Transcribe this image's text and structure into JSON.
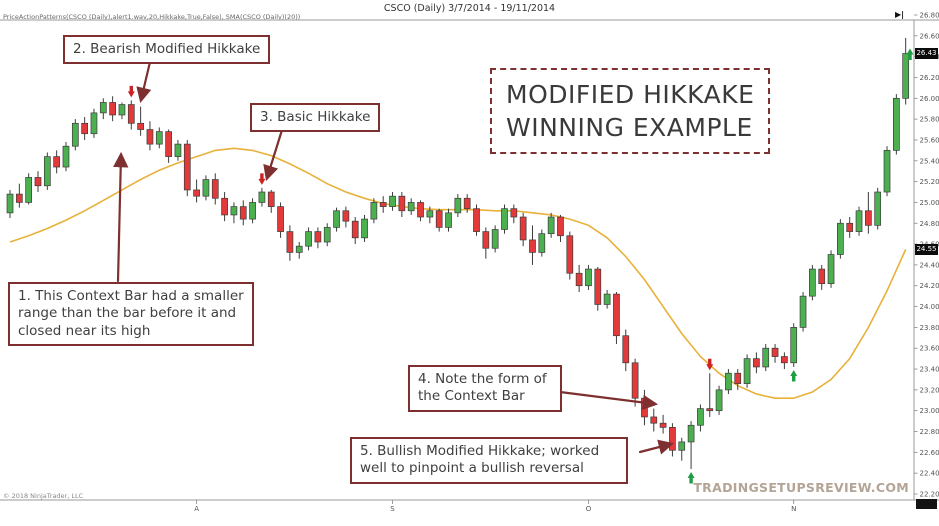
{
  "window": {
    "title": "CSCO (Daily) 3/7/2014 - 19/11/2014",
    "indicator_label": "PriceActionPatterns(CSCO (Daily),alert1.wav,20,Hikkake,True,False), SMA(CSCO (Daily)(20))",
    "copyright": "© 2018 NinjaTrader, LLC",
    "watermark": "TRADINGSETUPSREVIEW.COM"
  },
  "icons": {
    "scroll_to_end": "▶|"
  },
  "annotations": {
    "title_box": "MODIFIED HIKKAKE\nWINNING EXAMPLE",
    "note1": "1. This Context Bar had a smaller range than the bar before it and closed near its high",
    "note2": "2. Bearish Modified Hikkake",
    "note3": "3. Basic Hikkake",
    "note4": "4. Note the form of the Context Bar",
    "note5": "5. Bullish Modified Hikkake; worked well to pinpoint a bullish reversal"
  },
  "axis_markers": {
    "last_price": "26.43",
    "sma_value": "24.55"
  },
  "chart_data": {
    "type": "candlestick",
    "symbol": "CSCO",
    "timeframe": "Daily",
    "date_range": "3/7/2014 - 19/11/2014",
    "overlay_line": "SMA(20)",
    "y_axis": {
      "min": 22.2,
      "max": 26.8,
      "step": 0.2
    },
    "x_axis": {
      "tick_labels": [
        "A",
        "S",
        "O",
        "N"
      ],
      "tick_bar_index": [
        20,
        41,
        62,
        84
      ]
    },
    "candles": [
      [
        24.9,
        25.12,
        24.85,
        25.08
      ],
      [
        25.08,
        25.18,
        24.95,
        25.0
      ],
      [
        25.0,
        25.28,
        24.98,
        25.24
      ],
      [
        25.24,
        25.3,
        25.1,
        25.16
      ],
      [
        25.16,
        25.48,
        25.12,
        25.44
      ],
      [
        25.44,
        25.5,
        25.28,
        25.34
      ],
      [
        25.34,
        25.58,
        25.3,
        25.54
      ],
      [
        25.54,
        25.8,
        25.5,
        25.76
      ],
      [
        25.76,
        25.82,
        25.6,
        25.66
      ],
      [
        25.66,
        25.9,
        25.62,
        25.86
      ],
      [
        25.86,
        26.0,
        25.8,
        25.96
      ],
      [
        25.96,
        26.02,
        25.78,
        25.84
      ],
      [
        25.84,
        25.96,
        25.8,
        25.94
      ],
      [
        25.94,
        25.98,
        25.7,
        25.76
      ],
      [
        25.76,
        25.92,
        25.64,
        25.7
      ],
      [
        25.7,
        25.78,
        25.5,
        25.56
      ],
      [
        25.56,
        25.72,
        25.52,
        25.68
      ],
      [
        25.68,
        25.7,
        25.38,
        25.44
      ],
      [
        25.44,
        25.6,
        25.4,
        25.56
      ],
      [
        25.56,
        25.6,
        25.06,
        25.12
      ],
      [
        25.12,
        25.22,
        25.0,
        25.06
      ],
      [
        25.06,
        25.26,
        25.02,
        25.22
      ],
      [
        25.22,
        25.28,
        24.98,
        25.04
      ],
      [
        25.04,
        25.1,
        24.82,
        24.88
      ],
      [
        24.88,
        25.0,
        24.8,
        24.96
      ],
      [
        24.96,
        25.02,
        24.78,
        24.84
      ],
      [
        24.84,
        25.04,
        24.8,
        25.0
      ],
      [
        25.0,
        25.14,
        24.96,
        25.1
      ],
      [
        25.1,
        25.12,
        24.9,
        24.96
      ],
      [
        24.96,
        25.0,
        24.66,
        24.72
      ],
      [
        24.72,
        24.78,
        24.44,
        24.52
      ],
      [
        24.52,
        24.62,
        24.46,
        24.58
      ],
      [
        24.58,
        24.76,
        24.54,
        24.72
      ],
      [
        24.72,
        24.76,
        24.56,
        24.62
      ],
      [
        24.62,
        24.8,
        24.58,
        24.76
      ],
      [
        24.76,
        24.95,
        24.72,
        24.92
      ],
      [
        24.92,
        24.96,
        24.76,
        24.82
      ],
      [
        24.82,
        24.86,
        24.6,
        24.66
      ],
      [
        24.66,
        24.88,
        24.62,
        24.84
      ],
      [
        24.84,
        25.04,
        24.8,
        25.0
      ],
      [
        25.0,
        25.06,
        24.9,
        24.96
      ],
      [
        24.96,
        25.1,
        24.92,
        25.06
      ],
      [
        25.06,
        25.1,
        24.86,
        24.92
      ],
      [
        24.92,
        25.04,
        24.88,
        25.0
      ],
      [
        25.0,
        25.02,
        24.82,
        24.86
      ],
      [
        24.86,
        24.96,
        24.8,
        24.92
      ],
      [
        24.92,
        24.94,
        24.72,
        24.76
      ],
      [
        24.76,
        24.94,
        24.72,
        24.9
      ],
      [
        24.9,
        25.08,
        24.86,
        25.04
      ],
      [
        25.04,
        25.08,
        24.9,
        24.94
      ],
      [
        24.94,
        24.98,
        24.68,
        24.72
      ],
      [
        24.72,
        24.76,
        24.46,
        24.56
      ],
      [
        24.56,
        24.78,
        24.52,
        24.74
      ],
      [
        24.74,
        24.98,
        24.7,
        24.94
      ],
      [
        24.94,
        24.98,
        24.8,
        24.86
      ],
      [
        24.86,
        24.9,
        24.58,
        24.64
      ],
      [
        24.64,
        24.78,
        24.4,
        24.52
      ],
      [
        24.52,
        24.74,
        24.48,
        24.7
      ],
      [
        24.7,
        24.9,
        24.66,
        24.86
      ],
      [
        24.86,
        24.88,
        24.62,
        24.68
      ],
      [
        24.68,
        24.72,
        24.26,
        24.32
      ],
      [
        24.32,
        24.4,
        24.14,
        24.2
      ],
      [
        24.2,
        24.4,
        24.16,
        24.36
      ],
      [
        24.36,
        24.38,
        23.96,
        24.02
      ],
      [
        24.02,
        24.16,
        23.98,
        24.12
      ],
      [
        24.12,
        24.14,
        23.64,
        23.72
      ],
      [
        23.72,
        23.78,
        23.38,
        23.46
      ],
      [
        23.46,
        23.5,
        23.04,
        23.12
      ],
      [
        23.12,
        23.2,
        22.86,
        22.94
      ],
      [
        22.94,
        23.02,
        22.8,
        22.88
      ],
      [
        22.88,
        22.96,
        22.78,
        22.84
      ],
      [
        22.84,
        22.88,
        22.56,
        22.62
      ],
      [
        22.62,
        22.74,
        22.52,
        22.7
      ],
      [
        22.7,
        22.9,
        22.44,
        22.86
      ],
      [
        22.86,
        23.06,
        22.8,
        23.02
      ],
      [
        23.02,
        23.36,
        22.94,
        23.0
      ],
      [
        23.0,
        23.24,
        22.96,
        23.2
      ],
      [
        23.2,
        23.4,
        23.16,
        23.36
      ],
      [
        23.36,
        23.4,
        23.2,
        23.26
      ],
      [
        23.26,
        23.54,
        23.22,
        23.5
      ],
      [
        23.5,
        23.56,
        23.36,
        23.42
      ],
      [
        23.42,
        23.64,
        23.38,
        23.6
      ],
      [
        23.6,
        23.64,
        23.46,
        23.52
      ],
      [
        23.52,
        23.56,
        23.4,
        23.46
      ],
      [
        23.46,
        23.84,
        23.42,
        23.8
      ],
      [
        23.8,
        24.14,
        23.76,
        24.1
      ],
      [
        24.1,
        24.4,
        24.06,
        24.36
      ],
      [
        24.36,
        24.4,
        24.16,
        24.22
      ],
      [
        24.22,
        24.54,
        24.18,
        24.5
      ],
      [
        24.5,
        24.84,
        24.46,
        24.8
      ],
      [
        24.8,
        24.86,
        24.66,
        24.72
      ],
      [
        24.72,
        24.96,
        24.68,
        24.92
      ],
      [
        24.92,
        25.1,
        24.7,
        24.78
      ],
      [
        24.78,
        25.14,
        24.74,
        25.1
      ],
      [
        25.1,
        25.54,
        25.06,
        25.5
      ],
      [
        25.5,
        26.04,
        25.46,
        26.0
      ],
      [
        26.0,
        26.58,
        25.94,
        26.43
      ]
    ],
    "sma20": [
      [
        0,
        24.62
      ],
      [
        2,
        24.68
      ],
      [
        4,
        24.75
      ],
      [
        6,
        24.83
      ],
      [
        8,
        24.92
      ],
      [
        10,
        25.02
      ],
      [
        12,
        25.12
      ],
      [
        14,
        25.22
      ],
      [
        16,
        25.31
      ],
      [
        18,
        25.38
      ],
      [
        20,
        25.44
      ],
      [
        22,
        25.5
      ],
      [
        24,
        25.52
      ],
      [
        26,
        25.5
      ],
      [
        28,
        25.45
      ],
      [
        30,
        25.37
      ],
      [
        32,
        25.28
      ],
      [
        34,
        25.18
      ],
      [
        36,
        25.1
      ],
      [
        38,
        25.04
      ],
      [
        40,
        24.99
      ],
      [
        42,
        24.96
      ],
      [
        44,
        24.94
      ],
      [
        46,
        24.93
      ],
      [
        48,
        24.93
      ],
      [
        50,
        24.93
      ],
      [
        52,
        24.92
      ],
      [
        54,
        24.92
      ],
      [
        56,
        24.9
      ],
      [
        58,
        24.88
      ],
      [
        60,
        24.84
      ],
      [
        62,
        24.78
      ],
      [
        64,
        24.66
      ],
      [
        66,
        24.48
      ],
      [
        68,
        24.26
      ],
      [
        70,
        24.0
      ],
      [
        72,
        23.74
      ],
      [
        74,
        23.52
      ],
      [
        76,
        23.36
      ],
      [
        78,
        23.24
      ],
      [
        80,
        23.16
      ],
      [
        82,
        23.12
      ],
      [
        84,
        23.12
      ],
      [
        86,
        23.18
      ],
      [
        88,
        23.3
      ],
      [
        90,
        23.5
      ],
      [
        92,
        23.8
      ],
      [
        94,
        24.15
      ],
      [
        96,
        24.55
      ]
    ],
    "signals": [
      {
        "bar": 13,
        "dir": "down"
      },
      {
        "bar": 27,
        "dir": "down"
      },
      {
        "bar": 75,
        "dir": "down"
      },
      {
        "bar": 73,
        "dir": "up"
      },
      {
        "bar": 84,
        "dir": "up"
      }
    ],
    "colors": {
      "up_fill": "#4caf50",
      "down_fill": "#e23a3a",
      "outline": "#3c3c3c",
      "sma": "#e8b13a",
      "signal_up": "#1e9e43",
      "signal_down": "#cc2222",
      "annotation": "#7e3030",
      "axis_text": "#555555"
    }
  }
}
